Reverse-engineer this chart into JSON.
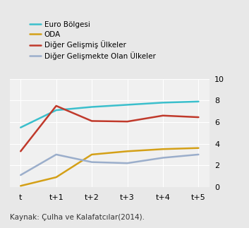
{
  "x_labels": [
    "t",
    "t+1",
    "t+2",
    "t+3",
    "t+4",
    "t+5"
  ],
  "x_values": [
    0,
    1,
    2,
    3,
    4,
    5
  ],
  "series_order": [
    "Euro Bölgesi",
    "ODA",
    "Diğer Gelişmiş Ülkeler",
    "Diğer Gelişmekte Olan Ülkeler"
  ],
  "series": {
    "Euro Bölgesi": {
      "values": [
        5.5,
        7.1,
        7.4,
        7.6,
        7.8,
        7.9
      ],
      "color": "#3bbfcc",
      "linewidth": 1.8
    },
    "ODA": {
      "values": [
        0.1,
        0.9,
        3.0,
        3.3,
        3.5,
        3.6
      ],
      "color": "#d4a017",
      "linewidth": 1.8
    },
    "Diğer Gelişmiş Ülkeler": {
      "values": [
        3.3,
        7.5,
        6.1,
        6.05,
        6.6,
        6.45
      ],
      "color": "#c0392b",
      "linewidth": 1.8
    },
    "Diğer Gelişmekte Olan Ülkeler": {
      "values": [
        1.1,
        3.0,
        2.3,
        2.2,
        2.7,
        3.0
      ],
      "color": "#9baecb",
      "linewidth": 1.8
    }
  },
  "ylim": [
    0,
    10
  ],
  "yticks": [
    0,
    2,
    4,
    6,
    8,
    10
  ],
  "plot_bg_color": "#f0f0f0",
  "fig_bg_color": "#e8e8e8",
  "legend_fontsize": 7.5,
  "tick_fontsize": 8,
  "caption": "Kaynak: Çulha ve Kalafatcılar(2014).",
  "caption_fontsize": 7.5,
  "grid_color": "#ffffff",
  "grid_linewidth": 0.8
}
